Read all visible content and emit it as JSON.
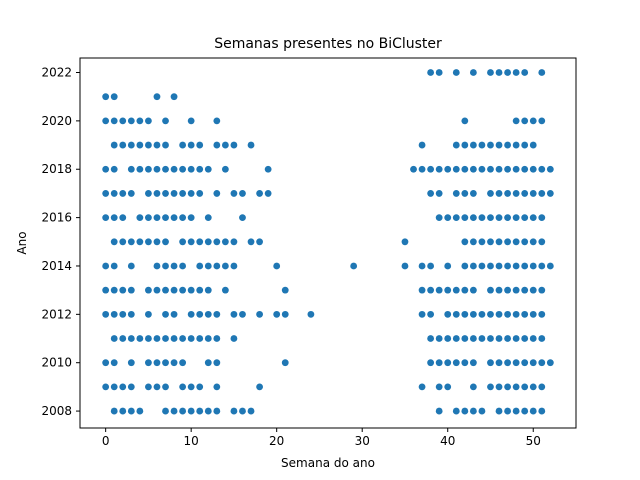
{
  "chart_data": {
    "type": "scatter",
    "title": "Semanas presentes no BiCluster",
    "xlabel": "Semana do ano",
    "ylabel": "Ano",
    "xlim": [
      -3,
      55
    ],
    "ylim": [
      2007.3,
      2022.6
    ],
    "xticks": [
      0,
      10,
      20,
      30,
      40,
      50
    ],
    "yticks": [
      2008,
      2010,
      2012,
      2014,
      2016,
      2018,
      2020,
      2022
    ],
    "grid": false,
    "marker_color": "#1f77b4",
    "rows": [
      {
        "year": 2008,
        "weeks": [
          1,
          2,
          3,
          4,
          7,
          8,
          9,
          10,
          11,
          12,
          13,
          15,
          16,
          17,
          39,
          41,
          42,
          43,
          44,
          46,
          47,
          48,
          49,
          50,
          51
        ]
      },
      {
        "year": 2009,
        "weeks": [
          0,
          1,
          2,
          3,
          5,
          6,
          7,
          9,
          10,
          11,
          13,
          18,
          37,
          39,
          40,
          43,
          45,
          46,
          47,
          48,
          49,
          50,
          51
        ]
      },
      {
        "year": 2010,
        "weeks": [
          0,
          1,
          3,
          5,
          6,
          7,
          8,
          9,
          12,
          13,
          21,
          38,
          39,
          40,
          41,
          42,
          43,
          45,
          46,
          47,
          48,
          49,
          50,
          51,
          52
        ]
      },
      {
        "year": 2011,
        "weeks": [
          1,
          2,
          3,
          4,
          5,
          6,
          7,
          8,
          9,
          10,
          11,
          12,
          13,
          15,
          38,
          39,
          40,
          41,
          42,
          43,
          44,
          45,
          46,
          47,
          48,
          49,
          50,
          51
        ]
      },
      {
        "year": 2012,
        "weeks": [
          0,
          1,
          2,
          3,
          5,
          7,
          8,
          10,
          11,
          12,
          13,
          15,
          16,
          18,
          20,
          21,
          24,
          37,
          38,
          40,
          41,
          42,
          43,
          44,
          45,
          46,
          47,
          48,
          49,
          50,
          51
        ]
      },
      {
        "year": 2013,
        "weeks": [
          0,
          1,
          2,
          3,
          5,
          6,
          7,
          8,
          9,
          10,
          11,
          12,
          14,
          21,
          37,
          38,
          39,
          40,
          41,
          42,
          43,
          45,
          46,
          47,
          48,
          49,
          50,
          51
        ]
      },
      {
        "year": 2014,
        "weeks": [
          0,
          1,
          3,
          6,
          7,
          8,
          9,
          11,
          12,
          13,
          14,
          15,
          20,
          29,
          35,
          37,
          38,
          40,
          42,
          43,
          44,
          45,
          46,
          47,
          48,
          49,
          50,
          51,
          52
        ]
      },
      {
        "year": 2015,
        "weeks": [
          1,
          2,
          3,
          4,
          5,
          6,
          7,
          9,
          10,
          11,
          12,
          13,
          14,
          15,
          17,
          18,
          35,
          42,
          43,
          44,
          45,
          46,
          47,
          48,
          49,
          50,
          51
        ]
      },
      {
        "year": 2016,
        "weeks": [
          0,
          1,
          2,
          4,
          5,
          6,
          7,
          8,
          9,
          10,
          12,
          16,
          39,
          40,
          41,
          42,
          43,
          44,
          45,
          46,
          47,
          48,
          49,
          50,
          51
        ]
      },
      {
        "year": 2017,
        "weeks": [
          0,
          1,
          2,
          3,
          5,
          6,
          7,
          8,
          9,
          10,
          11,
          13,
          15,
          16,
          18,
          19,
          38,
          39,
          41,
          42,
          43,
          45,
          46,
          47,
          48,
          49,
          50,
          51,
          52
        ]
      },
      {
        "year": 2018,
        "weeks": [
          0,
          1,
          3,
          4,
          5,
          6,
          7,
          8,
          9,
          10,
          11,
          12,
          14,
          19,
          36,
          37,
          38,
          39,
          40,
          41,
          42,
          43,
          44,
          45,
          46,
          47,
          48,
          49,
          50,
          51,
          52
        ]
      },
      {
        "year": 2019,
        "weeks": [
          1,
          2,
          3,
          4,
          5,
          6,
          7,
          9,
          10,
          11,
          13,
          14,
          15,
          17,
          37,
          41,
          42,
          43,
          44,
          45,
          46,
          47,
          48,
          49,
          50
        ]
      },
      {
        "year": 2020,
        "weeks": [
          0,
          1,
          2,
          3,
          4,
          5,
          7,
          10,
          13,
          42,
          48,
          49,
          50,
          51
        ]
      },
      {
        "year": 2021,
        "weeks": [
          0,
          1,
          6,
          8
        ]
      },
      {
        "year": 2022,
        "weeks": [
          38,
          39,
          41,
          43,
          45,
          46,
          47,
          48,
          49,
          51
        ]
      }
    ]
  }
}
